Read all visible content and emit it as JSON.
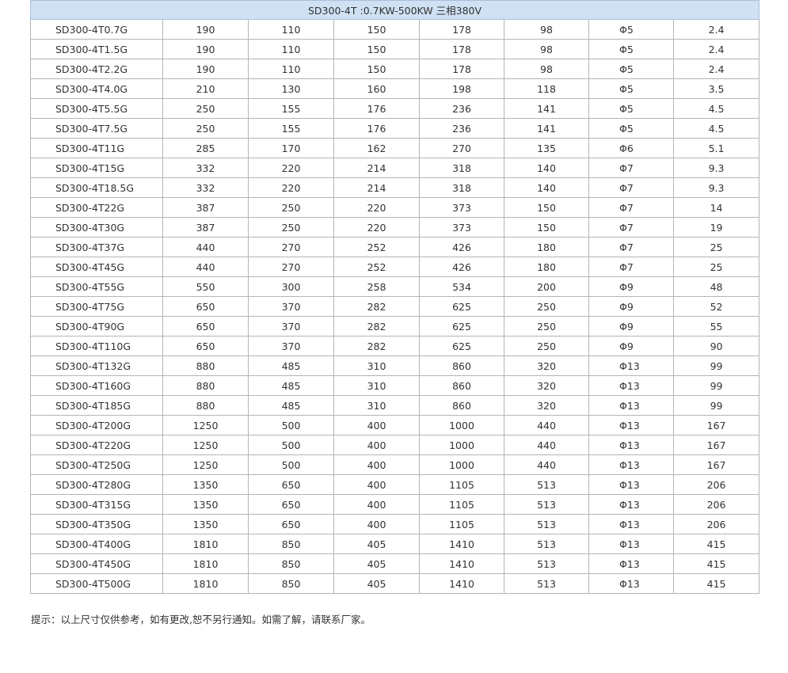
{
  "title": "SD300-4T :0.7KW-500KW    三相380V",
  "rows": [
    [
      "SD300-4T0.7G",
      "190",
      "110",
      "150",
      "178",
      "98",
      "Φ5",
      "2.4"
    ],
    [
      "SD300-4T1.5G",
      "190",
      "110",
      "150",
      "178",
      "98",
      "Φ5",
      "2.4"
    ],
    [
      "SD300-4T2.2G",
      "190",
      "110",
      "150",
      "178",
      "98",
      "Φ5",
      "2.4"
    ],
    [
      "SD300-4T4.0G",
      "210",
      "130",
      "160",
      "198",
      "118",
      "Φ5",
      "3.5"
    ],
    [
      "SD300-4T5.5G",
      "250",
      "155",
      "176",
      "236",
      "141",
      "Φ5",
      "4.5"
    ],
    [
      "SD300-4T7.5G",
      "250",
      "155",
      "176",
      "236",
      "141",
      "Φ5",
      "4.5"
    ],
    [
      "SD300-4T11G",
      "285",
      "170",
      "162",
      "270",
      "135",
      "Φ6",
      "5.1"
    ],
    [
      "SD300-4T15G",
      "332",
      "220",
      "214",
      "318",
      "140",
      "Φ7",
      "9.3"
    ],
    [
      "SD300-4T18.5G",
      "332",
      "220",
      "214",
      "318",
      "140",
      "Φ7",
      "9.3"
    ],
    [
      "SD300-4T22G",
      "387",
      "250",
      "220",
      "373",
      "150",
      "Φ7",
      "14"
    ],
    [
      "SD300-4T30G",
      "387",
      "250",
      "220",
      "373",
      "150",
      "Φ7",
      "19"
    ],
    [
      "SD300-4T37G",
      "440",
      "270",
      "252",
      "426",
      "180",
      "Φ7",
      "25"
    ],
    [
      "SD300-4T45G",
      "440",
      "270",
      "252",
      "426",
      "180",
      "Φ7",
      "25"
    ],
    [
      "SD300-4T55G",
      "550",
      "300",
      "258",
      "534",
      "200",
      "Φ9",
      "48"
    ],
    [
      "SD300-4T75G",
      "650",
      "370",
      "282",
      "625",
      "250",
      "Φ9",
      "52"
    ],
    [
      "SD300-4T90G",
      "650",
      "370",
      "282",
      "625",
      "250",
      "Φ9",
      "55"
    ],
    [
      "SD300-4T110G",
      "650",
      "370",
      "282",
      "625",
      "250",
      "Φ9",
      "90"
    ],
    [
      "SD300-4T132G",
      "880",
      "485",
      "310",
      "860",
      "320",
      "Φ13",
      "99"
    ],
    [
      "SD300-4T160G",
      "880",
      "485",
      "310",
      "860",
      "320",
      "Φ13",
      "99"
    ],
    [
      "SD300-4T185G",
      "880",
      "485",
      "310",
      "860",
      "320",
      "Φ13",
      "99"
    ],
    [
      "SD300-4T200G",
      "1250",
      "500",
      "400",
      "1000",
      "440",
      "Φ13",
      "167"
    ],
    [
      "SD300-4T220G",
      "1250",
      "500",
      "400",
      "1000",
      "440",
      "Φ13",
      "167"
    ],
    [
      "SD300-4T250G",
      "1250",
      "500",
      "400",
      "1000",
      "440",
      "Φ13",
      "167"
    ],
    [
      "SD300-4T280G",
      "1350",
      "650",
      "400",
      "1105",
      "513",
      "Φ13",
      "206"
    ],
    [
      "SD300-4T315G",
      "1350",
      "650",
      "400",
      "1105",
      "513",
      "Φ13",
      "206"
    ],
    [
      "SD300-4T350G",
      "1350",
      "650",
      "400",
      "1105",
      "513",
      "Φ13",
      "206"
    ],
    [
      "SD300-4T400G",
      "1810",
      "850",
      "405",
      "1410",
      "513",
      "Φ13",
      "415"
    ],
    [
      "SD300-4T450G",
      "1810",
      "850",
      "405",
      "1410",
      "513",
      "Φ13",
      "415"
    ],
    [
      "SD300-4T500G",
      "1810",
      "850",
      "405",
      "1410",
      "513",
      "Φ13",
      "415"
    ]
  ],
  "note": "提示：以上尺寸仅供参考，如有更改,恕不另行通知。如需了解，请联系厂家。",
  "colors": {
    "header_bg": "#cfe1f3"
  }
}
